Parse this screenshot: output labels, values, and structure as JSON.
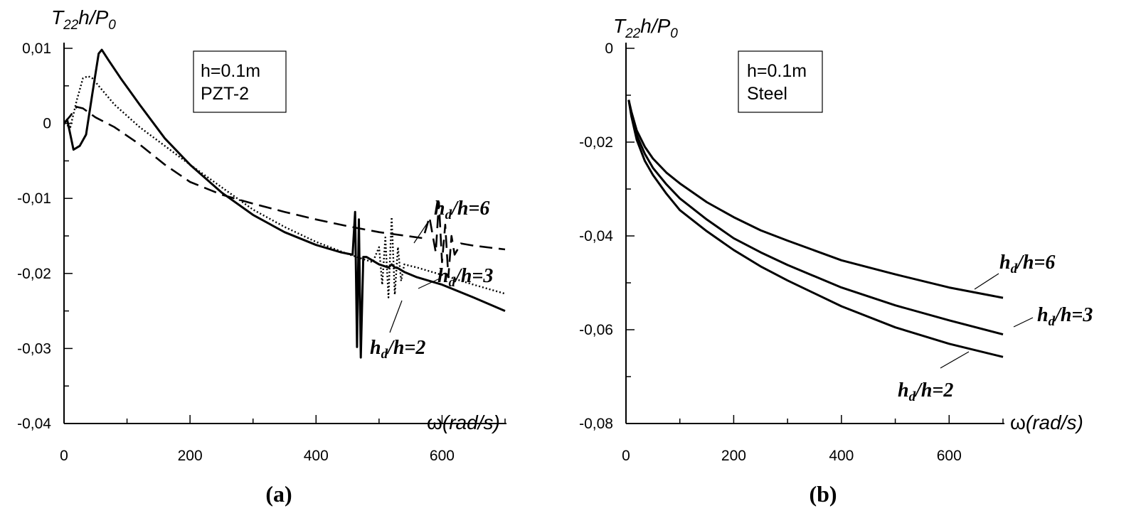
{
  "chart_data": [
    {
      "type": "line",
      "panel_label": "(a)",
      "ylabel": {
        "main": "T",
        "sub": "22",
        "rest": "h/P",
        "sub2": "0"
      },
      "xlabel": {
        "symbol": "ω",
        "unit": "(rad/s)"
      },
      "xlim": [
        0,
        700
      ],
      "ylim": [
        -0.04,
        0.01
      ],
      "xticks": [
        {
          "v": 0,
          "label": "0"
        },
        {
          "v": 200,
          "label": "200"
        },
        {
          "v": 400,
          "label": "400"
        },
        {
          "v": 600,
          "label": "600"
        }
      ],
      "xminor": [
        100,
        300,
        500,
        700
      ],
      "yticks": [
        {
          "v": 0.01,
          "label": "0,01"
        },
        {
          "v": 0,
          "label": "0"
        },
        {
          "v": -0.01,
          "label": "-0,01"
        },
        {
          "v": -0.02,
          "label": "-0,02"
        },
        {
          "v": -0.03,
          "label": "-0,03"
        },
        {
          "v": -0.04,
          "label": "-0,04"
        }
      ],
      "yminor": [
        0.005,
        -0.005,
        -0.015,
        -0.025,
        -0.035
      ],
      "info_box": [
        "h=0.1m",
        "PZT-2"
      ],
      "series": [
        {
          "name": "hd/h=2",
          "style": "solid",
          "label_main": "h",
          "label_sub": "d",
          "label_rest": "/h=2",
          "x": [
            0,
            5,
            10,
            15,
            25,
            35,
            45,
            55,
            60,
            70,
            90,
            120,
            160,
            200,
            250,
            300,
            350,
            400,
            440,
            458,
            462,
            465,
            468,
            471,
            475,
            480,
            500,
            515,
            520,
            525,
            530,
            540,
            560,
            600,
            650,
            700
          ],
          "y": [
            0,
            0.0005,
            -0.0015,
            -0.0035,
            -0.003,
            -0.0015,
            0.004,
            0.0093,
            0.0098,
            0.0085,
            0.006,
            0.0025,
            -0.002,
            -0.0055,
            -0.0092,
            -0.0122,
            -0.0145,
            -0.0162,
            -0.0172,
            -0.0175,
            -0.0118,
            -0.0298,
            -0.0128,
            -0.0312,
            -0.0178,
            -0.0178,
            -0.0188,
            -0.0192,
            -0.0188,
            -0.0192,
            -0.0193,
            -0.0198,
            -0.0205,
            -0.0215,
            -0.0232,
            -0.025
          ]
        },
        {
          "name": "hd/h=3",
          "style": "dotted",
          "label_main": "h",
          "label_sub": "d",
          "label_rest": "/h=3",
          "x": [
            0,
            10,
            20,
            30,
            38,
            45,
            60,
            80,
            120,
            160,
            200,
            250,
            300,
            350,
            400,
            450,
            490,
            500,
            505,
            510,
            515,
            520,
            525,
            530,
            535,
            540,
            560,
            600,
            650,
            700
          ],
          "y": [
            0,
            -0.0005,
            0.003,
            0.006,
            0.0063,
            0.006,
            0.0045,
            0.0025,
            -0.0005,
            -0.003,
            -0.0055,
            -0.0085,
            -0.0115,
            -0.0138,
            -0.0158,
            -0.0174,
            -0.0185,
            -0.0165,
            -0.0215,
            -0.0152,
            -0.0232,
            -0.0125,
            -0.0228,
            -0.0165,
            -0.021,
            -0.0188,
            -0.0192,
            -0.0202,
            -0.0215,
            -0.0227
          ]
        },
        {
          "name": "hd/h=6",
          "style": "dashed",
          "label_main": "h",
          "label_sub": "d",
          "label_rest": "/h=6",
          "x": [
            0,
            10,
            20,
            30,
            50,
            80,
            120,
            160,
            200,
            250,
            300,
            350,
            400,
            450,
            500,
            570,
            580,
            590,
            595,
            600,
            605,
            610,
            615,
            620,
            630,
            650,
            700
          ],
          "y": [
            0,
            0.001,
            0.0022,
            0.002,
            0.0008,
            -0.0005,
            -0.0028,
            -0.0055,
            -0.0078,
            -0.0095,
            -0.0107,
            -0.0118,
            -0.0128,
            -0.0137,
            -0.0145,
            -0.0153,
            -0.0125,
            -0.0172,
            -0.0105,
            -0.0185,
            -0.0135,
            -0.0205,
            -0.015,
            -0.0175,
            -0.016,
            -0.0163,
            -0.0168
          ]
        }
      ]
    },
    {
      "type": "line",
      "panel_label": "(b)",
      "ylabel": {
        "main": "T",
        "sub": "22",
        "rest": "h/P",
        "sub2": "0"
      },
      "xlabel": {
        "symbol": "ω",
        "unit": "(rad/s)"
      },
      "xlim": [
        0,
        700
      ],
      "ylim": [
        -0.08,
        0
      ],
      "xticks": [
        {
          "v": 0,
          "label": "0"
        },
        {
          "v": 200,
          "label": "200"
        },
        {
          "v": 400,
          "label": "400"
        },
        {
          "v": 600,
          "label": "600"
        }
      ],
      "xminor": [
        100,
        300,
        500,
        700
      ],
      "yticks": [
        {
          "v": 0,
          "label": "0"
        },
        {
          "v": -0.02,
          "label": "-0,02"
        },
        {
          "v": -0.04,
          "label": "-0,04"
        },
        {
          "v": -0.06,
          "label": "-0,06"
        },
        {
          "v": -0.08,
          "label": "-0,08"
        }
      ],
      "yminor": [
        -0.01,
        -0.03,
        -0.05,
        -0.07
      ],
      "info_box": [
        "h=0.1m",
        "Steel"
      ],
      "series": [
        {
          "name": "hd/h=6",
          "style": "solid",
          "label_main": "h",
          "label_sub": "d",
          "label_rest": "/h=6",
          "x": [
            5,
            10,
            20,
            35,
            50,
            75,
            100,
            150,
            200,
            250,
            300,
            400,
            500,
            600,
            700
          ],
          "y": [
            -0.011,
            -0.0135,
            -0.0175,
            -0.021,
            -0.0235,
            -0.0265,
            -0.0288,
            -0.0328,
            -0.036,
            -0.0388,
            -0.041,
            -0.0452,
            -0.0482,
            -0.051,
            -0.0532
          ]
        },
        {
          "name": "hd/h=3",
          "style": "solid",
          "label_main": "h",
          "label_sub": "d",
          "label_rest": "/h=3",
          "x": [
            5,
            10,
            20,
            35,
            50,
            75,
            100,
            150,
            200,
            250,
            300,
            400,
            500,
            600,
            700
          ],
          "y": [
            -0.011,
            -0.014,
            -0.0185,
            -0.0225,
            -0.0255,
            -0.029,
            -0.032,
            -0.0365,
            -0.0405,
            -0.0435,
            -0.0462,
            -0.051,
            -0.0548,
            -0.058,
            -0.061
          ]
        },
        {
          "name": "hd/h=2",
          "style": "solid",
          "label_main": "h",
          "label_sub": "d",
          "label_rest": "/h=2",
          "x": [
            5,
            10,
            20,
            35,
            50,
            75,
            100,
            150,
            200,
            250,
            300,
            400,
            500,
            600,
            700
          ],
          "y": [
            -0.011,
            -0.0145,
            -0.0195,
            -0.024,
            -0.027,
            -0.031,
            -0.0345,
            -0.039,
            -0.043,
            -0.0465,
            -0.0495,
            -0.055,
            -0.0595,
            -0.063,
            -0.0658
          ]
        }
      ]
    }
  ]
}
